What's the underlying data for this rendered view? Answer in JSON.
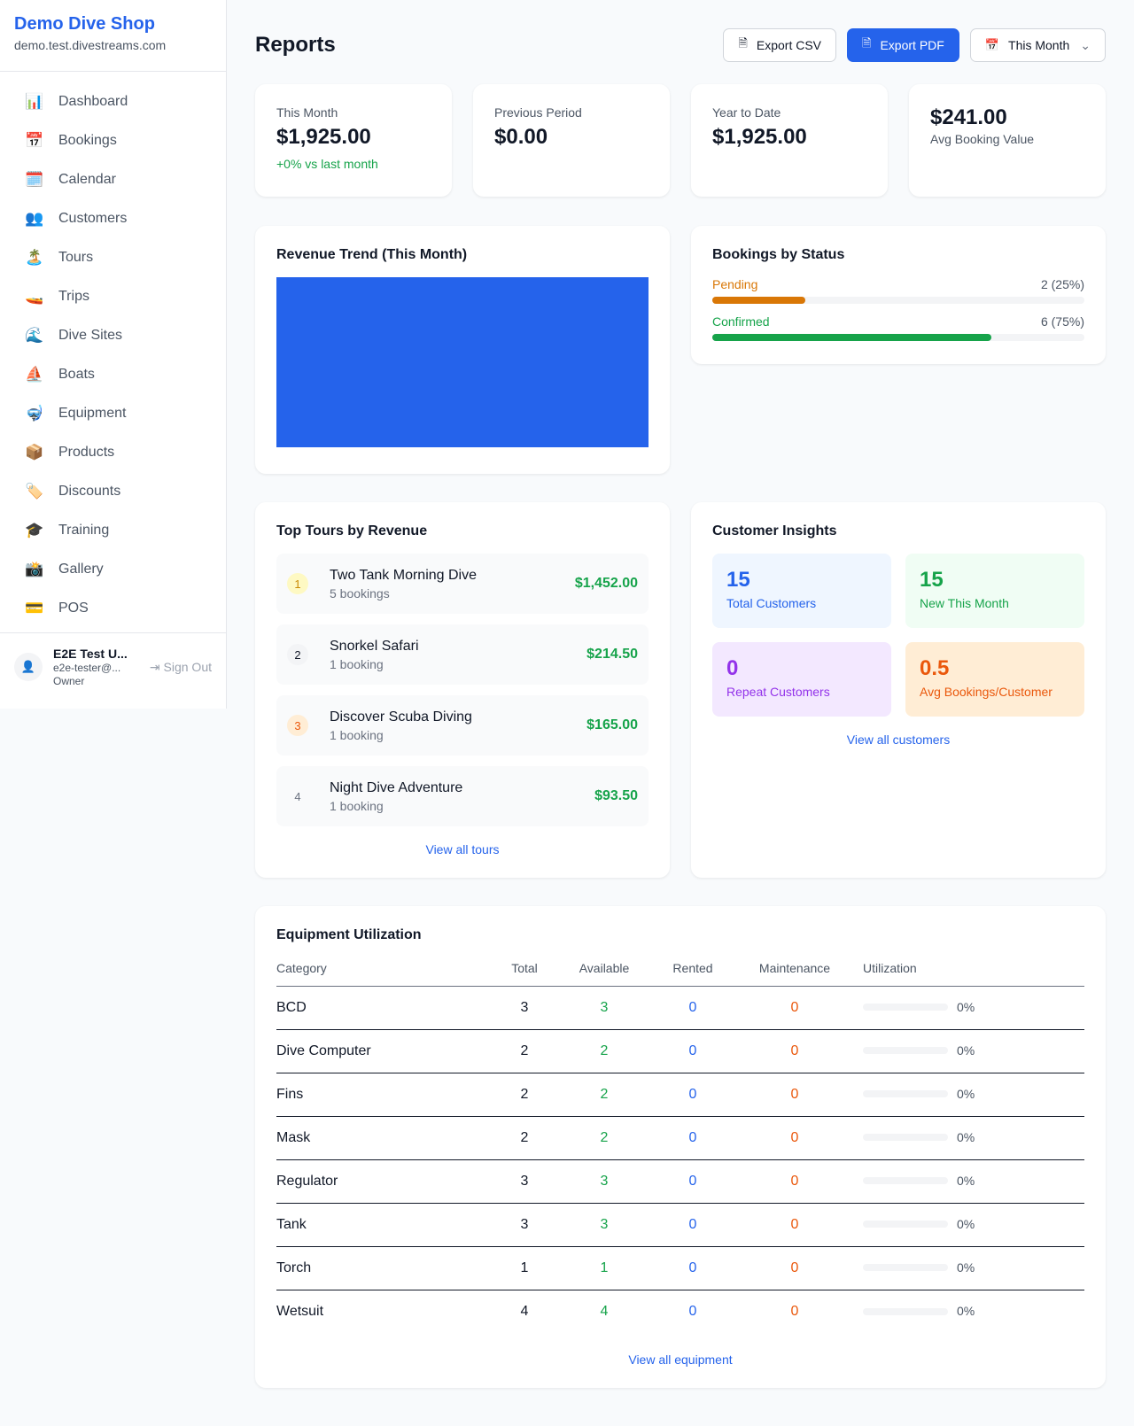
{
  "sidebar": {
    "shop_name": "Demo Dive Shop",
    "domain": "demo.test.divestreams.com",
    "items": [
      {
        "label": "Dashboard",
        "icon": "📊"
      },
      {
        "label": "Bookings",
        "icon": "📅"
      },
      {
        "label": "Calendar",
        "icon": "🗓️"
      },
      {
        "label": "Customers",
        "icon": "👥"
      },
      {
        "label": "Tours",
        "icon": "🏝️"
      },
      {
        "label": "Trips",
        "icon": "🚤"
      },
      {
        "label": "Dive Sites",
        "icon": "🌊"
      },
      {
        "label": "Boats",
        "icon": "⛵"
      },
      {
        "label": "Equipment",
        "icon": "🤿"
      },
      {
        "label": "Products",
        "icon": "📦"
      },
      {
        "label": "Discounts",
        "icon": "🏷️"
      },
      {
        "label": "Training",
        "icon": "🎓"
      },
      {
        "label": "Gallery",
        "icon": "📸"
      },
      {
        "label": "POS",
        "icon": "💳"
      }
    ],
    "user": {
      "name": "E2E Test U...",
      "email": "e2e-tester@...",
      "role": "Owner",
      "sign_out": "Sign Out"
    }
  },
  "header": {
    "title": "Reports",
    "export_csv": "Export CSV",
    "export_pdf": "Export PDF",
    "period": "This Month"
  },
  "stats": [
    {
      "label": "This Month",
      "value": "$1,925.00",
      "change": "+0% vs last month"
    },
    {
      "label": "Previous Period",
      "value": "$0.00"
    },
    {
      "label": "Year to Date",
      "value": "$1,925.00"
    },
    {
      "value": "$241.00",
      "label": "Avg Booking Value"
    }
  ],
  "revenue": {
    "title": "Revenue Trend (This Month)",
    "color": "#2563eb"
  },
  "bookings_status": {
    "title": "Bookings by Status",
    "items": [
      {
        "label": "Pending",
        "count": "2 (25%)",
        "percent": 25,
        "color": "#d97706"
      },
      {
        "label": "Confirmed",
        "count": "6 (75%)",
        "percent": 75,
        "color": "#16a34a"
      }
    ]
  },
  "top_tours": {
    "title": "Top Tours by Revenue",
    "items": [
      {
        "rank": "1",
        "name": "Two Tank Morning Dive",
        "bookings": "5 bookings",
        "revenue": "$1,452.00"
      },
      {
        "rank": "2",
        "name": "Snorkel Safari",
        "bookings": "1 booking",
        "revenue": "$214.50"
      },
      {
        "rank": "3",
        "name": "Discover Scuba Diving",
        "bookings": "1 booking",
        "revenue": "$165.00"
      },
      {
        "rank": "4",
        "name": "Night Dive Adventure",
        "bookings": "1 booking",
        "revenue": "$93.50"
      }
    ],
    "link": "View all tours"
  },
  "insights": {
    "title": "Customer Insights",
    "items": [
      {
        "value": "15",
        "label": "Total Customers"
      },
      {
        "value": "15",
        "label": "New This Month"
      },
      {
        "value": "0",
        "label": "Repeat Customers"
      },
      {
        "value": "0.5",
        "label": "Avg Bookings/Customer"
      }
    ],
    "link": "View all customers"
  },
  "equipment": {
    "title": "Equipment Utilization",
    "columns": [
      "Category",
      "Total",
      "Available",
      "Rented",
      "Maintenance",
      "Utilization"
    ],
    "rows": [
      [
        "BCD",
        "3",
        "3",
        "0",
        "0",
        "0%"
      ],
      [
        "Dive Computer",
        "2",
        "2",
        "0",
        "0",
        "0%"
      ],
      [
        "Fins",
        "2",
        "2",
        "0",
        "0",
        "0%"
      ],
      [
        "Mask",
        "2",
        "2",
        "0",
        "0",
        "0%"
      ],
      [
        "Regulator",
        "3",
        "3",
        "0",
        "0",
        "0%"
      ],
      [
        "Tank",
        "3",
        "3",
        "0",
        "0",
        "0%"
      ],
      [
        "Torch",
        "1",
        "1",
        "0",
        "0",
        "0%"
      ],
      [
        "Wetsuit",
        "4",
        "4",
        "0",
        "0",
        "0%"
      ]
    ],
    "link": "View all equipment"
  }
}
